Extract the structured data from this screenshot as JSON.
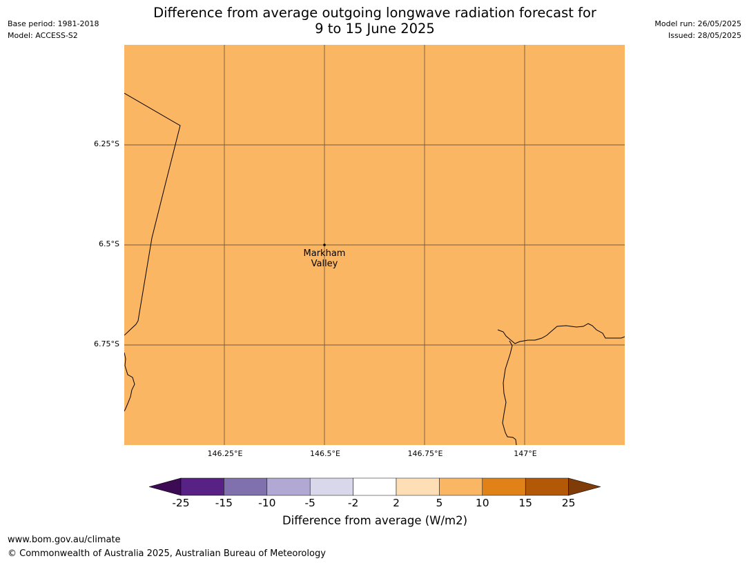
{
  "header": {
    "title_line1": "Difference from average outgoing longwave radiation forecast for",
    "title_line2": "9 to 15 June 2025",
    "base_period": "Base period: 1981-2018",
    "model": "Model: ACCESS-S2",
    "model_run": "Model run: 26/05/2025",
    "issued": "Issued: 28/05/2025"
  },
  "map": {
    "fill_color": "#fbb663",
    "fill_category": "5 to 10",
    "lat_labels": [
      "6.25°S",
      "6.5°S",
      "6.75°S"
    ],
    "lon_labels": [
      "146.25°E",
      "146.5°E",
      "146.75°E",
      "147°E"
    ],
    "place": {
      "name_line1": "Markham",
      "name_line2": "Valley"
    }
  },
  "colorbar": {
    "ticks": [
      "-25",
      "-15",
      "-10",
      "-5",
      "-2",
      "2",
      "5",
      "10",
      "15",
      "25"
    ],
    "colors": [
      "#3d0a54",
      "#572186",
      "#8071ae",
      "#b1a9d3",
      "#d9d8ea",
      "#ffffff",
      "#fedfb5",
      "#fbb663",
      "#e08218",
      "#b35807",
      "#7f3b08"
    ],
    "label": "Difference from average (W/m2)"
  },
  "footer": {
    "url": "www.bom.gov.au/climate",
    "copyright": "© Commonwealth of Australia 2025, Australian Bureau of Meteorology"
  }
}
